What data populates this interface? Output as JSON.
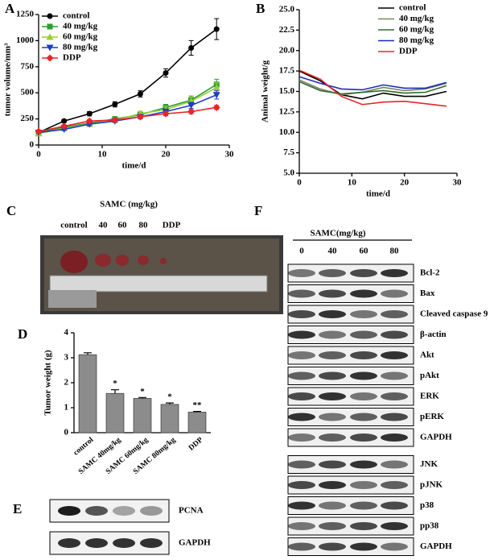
{
  "chart_data": [
    {
      "type": "line",
      "panel": "A",
      "x_label": "time/d",
      "y_label": "tumor volume/mm³",
      "x": [
        0,
        4,
        8,
        12,
        16,
        20,
        24,
        28
      ],
      "xlim": [
        0,
        30
      ],
      "xticks": [
        0,
        10,
        20,
        30
      ],
      "ylim": [
        0,
        1250
      ],
      "yticks": [
        0,
        250,
        500,
        750,
        1000,
        1250
      ],
      "series": [
        {
          "name": "control",
          "color": "#000000",
          "marker": "circle",
          "values": [
            120,
            230,
            300,
            390,
            490,
            690,
            930,
            1110
          ],
          "errors": [
            10,
            15,
            20,
            25,
            30,
            40,
            70,
            100
          ]
        },
        {
          "name": "40 mg/kg",
          "color": "#2ca02c",
          "marker": "square",
          "values": [
            120,
            170,
            210,
            250,
            290,
            360,
            430,
            580
          ],
          "errors": [
            10,
            15,
            15,
            20,
            25,
            30,
            40,
            50
          ]
        },
        {
          "name": "60 mg/kg",
          "color": "#9acd32",
          "marker": "triangle",
          "values": [
            110,
            160,
            200,
            240,
            300,
            340,
            420,
            550
          ],
          "errors": [
            10,
            15,
            15,
            20,
            25,
            30,
            40,
            45
          ]
        },
        {
          "name": "80 mg/kg",
          "color": "#1f3cc8",
          "marker": "triangle-down",
          "values": [
            120,
            150,
            200,
            230,
            270,
            320,
            380,
            480
          ],
          "errors": [
            10,
            10,
            15,
            15,
            20,
            25,
            30,
            40
          ]
        },
        {
          "name": "DDP",
          "color": "#e8252a",
          "marker": "diamond",
          "values": [
            130,
            180,
            230,
            240,
            270,
            300,
            320,
            360
          ],
          "errors": [
            10,
            10,
            15,
            15,
            15,
            20,
            20,
            20
          ]
        }
      ]
    },
    {
      "type": "line",
      "panel": "B",
      "x_label": "time/d",
      "y_label": "Animal weight/g",
      "x": [
        0,
        4,
        8,
        12,
        16,
        20,
        24,
        28
      ],
      "xlim": [
        0,
        30
      ],
      "xticks": [
        0,
        10,
        20,
        30
      ],
      "ylim": [
        5,
        25
      ],
      "yticks": [
        {
          "value": 5,
          "label": "5.0"
        },
        7.5,
        {
          "value": 10,
          "label": "10.0"
        },
        12.5,
        {
          "value": 15,
          "label": "15.0"
        },
        17.5,
        {
          "value": 20,
          "label": "20.0"
        },
        22.5,
        {
          "value": 25,
          "label": "25.0"
        }
      ],
      "series": [
        {
          "name": "control",
          "color": "#000000",
          "values": [
            17.5,
            16.3,
            14.6,
            14.1,
            14.8,
            14.4,
            14.4,
            15.0
          ]
        },
        {
          "name": "40 mg/kg",
          "color": "#808060",
          "values": [
            16.4,
            15.3,
            14.6,
            14.9,
            15.5,
            15.1,
            15.3,
            16.0
          ]
        },
        {
          "name": "60 mg/kg",
          "color": "#2e6b2e",
          "values": [
            16.2,
            15.1,
            14.7,
            14.9,
            15.1,
            14.8,
            14.9,
            15.7
          ]
        },
        {
          "name": "80 mg/kg",
          "color": "#1a2eb8",
          "values": [
            16.8,
            16.0,
            15.3,
            15.2,
            15.8,
            15.4,
            15.4,
            16.1
          ]
        },
        {
          "name": "DDP",
          "color": "#e8252a",
          "values": [
            17.6,
            16.5,
            14.4,
            13.4,
            13.7,
            13.8,
            13.5,
            13.2
          ]
        }
      ]
    },
    {
      "type": "bar",
      "panel": "D",
      "y_label": "Tumor weight (g)",
      "categories": [
        "control",
        "SAMC 40mg/kg",
        "SAMC 60mg/kg",
        "SAMC 80mg/kg",
        "DDP"
      ],
      "values": [
        3.12,
        1.57,
        1.37,
        1.13,
        0.82
      ],
      "errors": [
        0.08,
        0.15,
        0.04,
        0.06,
        0.03
      ],
      "annotations": [
        null,
        "*",
        "*",
        "*",
        "**"
      ],
      "color": "#8c8c8c",
      "ylim": [
        0,
        4
      ],
      "yticks": [
        0,
        1,
        2,
        3,
        4
      ]
    }
  ],
  "panel_c": {
    "label": "C",
    "title": "SAMC (mg/kg)",
    "lanes": [
      "control",
      "40",
      "60",
      "80",
      "DDP"
    ]
  },
  "panel_e": {
    "label": "E",
    "rows": [
      "PCNA",
      "GAPDH"
    ]
  },
  "panel_f": {
    "label": "F",
    "title": "SAMC(mg/kg)",
    "lanes": [
      "0",
      "40",
      "60",
      "80"
    ],
    "rows": [
      "Bcl-2",
      "Bax",
      "Cleaved caspase 9",
      "β-actin",
      "Akt",
      "pAkt",
      "ERK",
      "pERK",
      "GAPDH",
      "JNK",
      "pJNK",
      "p38",
      "pp38",
      "GAPDH"
    ]
  }
}
